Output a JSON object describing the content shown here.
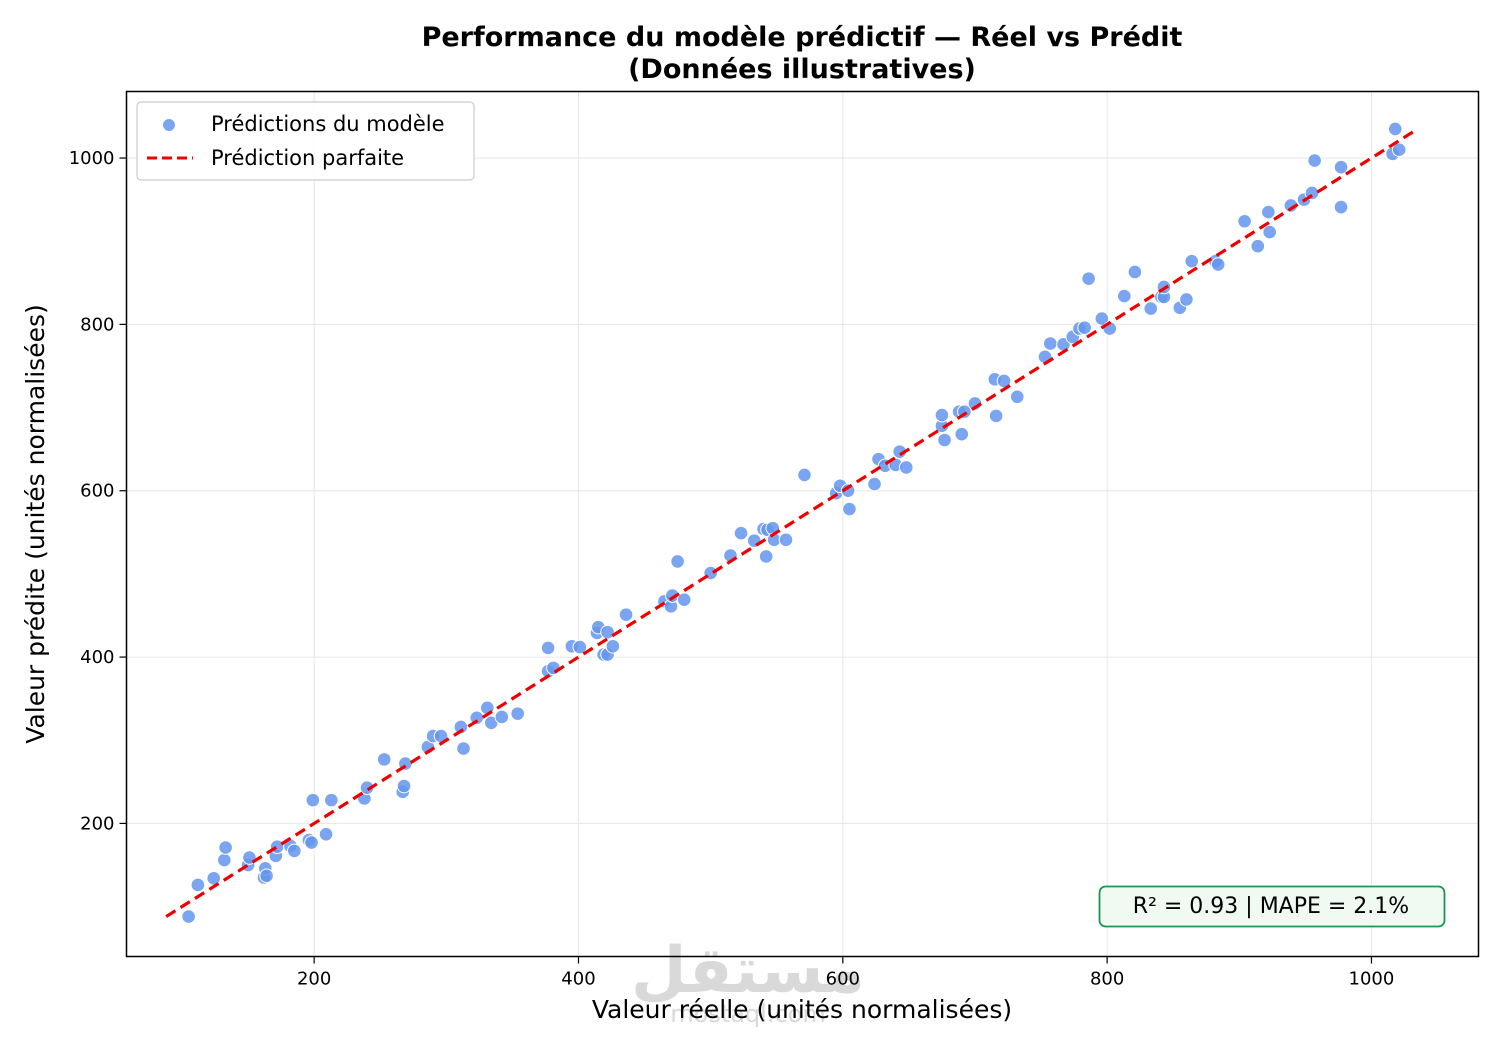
{
  "chart_data": {
    "type": "scatter",
    "title": "Performance du modèle prédictif — Réel vs Prédit",
    "subtitle": "(Données illustratives)",
    "xlabel": "Valeur réelle (unités normalisées)",
    "ylabel": "Valeur prédite (unités normalisées)",
    "xlim": [
      58,
      1081
    ],
    "ylim": [
      40,
      1080
    ],
    "xticks": [
      200,
      400,
      600,
      800,
      1000
    ],
    "yticks": [
      200,
      400,
      600,
      800,
      1000
    ],
    "grid": true,
    "legend_position": "top-left",
    "series": [
      {
        "name": "Prédictions du modèle",
        "kind": "scatter",
        "color": "#6495ED",
        "points": [
          [
            105,
            88
          ],
          [
            112,
            126
          ],
          [
            124,
            134
          ],
          [
            132,
            156
          ],
          [
            133,
            171
          ],
          [
            150,
            150
          ],
          [
            151,
            159
          ],
          [
            162,
            135
          ],
          [
            163,
            146
          ],
          [
            164,
            137
          ],
          [
            171,
            161
          ],
          [
            172,
            172
          ],
          [
            182,
            173
          ],
          [
            185,
            167
          ],
          [
            196,
            180
          ],
          [
            198,
            177
          ],
          [
            199,
            228
          ],
          [
            209,
            187
          ],
          [
            213,
            228
          ],
          [
            238,
            230
          ],
          [
            240,
            243
          ],
          [
            253,
            277
          ],
          [
            267,
            238
          ],
          [
            268,
            245
          ],
          [
            269,
            272
          ],
          [
            286,
            292
          ],
          [
            290,
            305
          ],
          [
            296,
            305
          ],
          [
            311,
            316
          ],
          [
            313,
            290
          ],
          [
            323,
            327
          ],
          [
            331,
            339
          ],
          [
            334,
            321
          ],
          [
            342,
            328
          ],
          [
            354,
            332
          ],
          [
            377,
            383
          ],
          [
            377,
            411
          ],
          [
            381,
            387
          ],
          [
            395,
            413
          ],
          [
            401,
            412
          ],
          [
            414,
            429
          ],
          [
            415,
            436
          ],
          [
            419,
            403
          ],
          [
            422,
            403
          ],
          [
            422,
            430
          ],
          [
            426,
            413
          ],
          [
            436,
            451
          ],
          [
            465,
            467
          ],
          [
            470,
            461
          ],
          [
            471,
            474
          ],
          [
            475,
            515
          ],
          [
            480,
            469
          ],
          [
            500,
            501
          ],
          [
            515,
            522
          ],
          [
            523,
            549
          ],
          [
            533,
            540
          ],
          [
            540,
            554
          ],
          [
            542,
            521
          ],
          [
            543,
            553
          ],
          [
            547,
            555
          ],
          [
            548,
            541
          ],
          [
            557,
            541
          ],
          [
            571,
            619
          ],
          [
            595,
            597
          ],
          [
            598,
            606
          ],
          [
            604,
            600
          ],
          [
            605,
            578
          ],
          [
            624,
            608
          ],
          [
            627,
            638
          ],
          [
            632,
            630
          ],
          [
            640,
            631
          ],
          [
            643,
            647
          ],
          [
            648,
            628
          ],
          [
            675,
            678
          ],
          [
            675,
            691
          ],
          [
            677,
            661
          ],
          [
            688,
            695
          ],
          [
            690,
            668
          ],
          [
            692,
            695
          ],
          [
            700,
            705
          ],
          [
            715,
            734
          ],
          [
            716,
            690
          ],
          [
            722,
            732
          ],
          [
            732,
            713
          ],
          [
            753,
            761
          ],
          [
            757,
            777
          ],
          [
            767,
            776
          ],
          [
            774,
            785
          ],
          [
            779,
            795
          ],
          [
            783,
            796
          ],
          [
            786,
            855
          ],
          [
            796,
            807
          ],
          [
            802,
            795
          ],
          [
            813,
            834
          ],
          [
            821,
            863
          ],
          [
            833,
            819
          ],
          [
            841,
            833
          ],
          [
            843,
            833
          ],
          [
            843,
            845
          ],
          [
            855,
            820
          ],
          [
            860,
            830
          ],
          [
            864,
            876
          ],
          [
            882,
            876
          ],
          [
            884,
            872
          ],
          [
            904,
            924
          ],
          [
            914,
            894
          ],
          [
            922,
            935
          ],
          [
            923,
            911
          ],
          [
            939,
            943
          ],
          [
            949,
            950
          ],
          [
            955,
            958
          ],
          [
            957,
            997
          ],
          [
            977,
            941
          ],
          [
            977,
            989
          ],
          [
            1016,
            1005
          ],
          [
            1018,
            1035
          ],
          [
            1021,
            1010
          ]
        ]
      },
      {
        "name": "Prédiction parfaite",
        "kind": "line",
        "color": "#EE0000",
        "x": [
          88,
          1033
        ],
        "y": [
          88,
          1033
        ]
      }
    ],
    "annotation": {
      "text": "R² = 0.93  |  MAPE = 2.1%",
      "position": "bottom-right",
      "border_color": "#1a9850",
      "fill_color": "#f0faf2"
    }
  },
  "watermark": {
    "arabic": "مستقل",
    "latin": "mostaql.com"
  }
}
